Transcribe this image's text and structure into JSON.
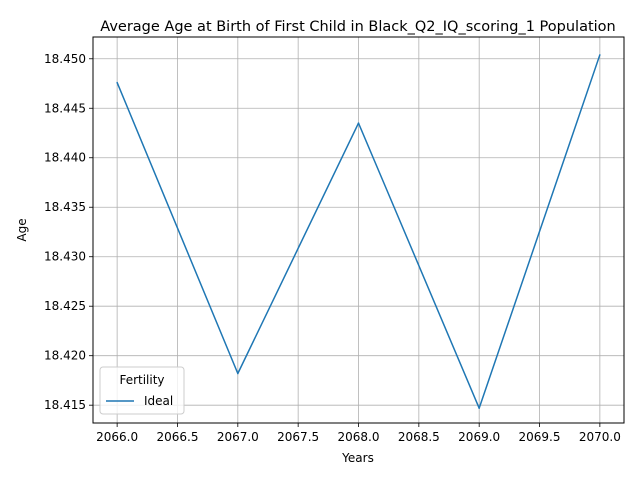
{
  "chart_data": {
    "type": "line",
    "title": "Average Age at Birth of First Child in Black_Q2_IQ_scoring_1 Population",
    "xlabel": "Years",
    "ylabel": "Age",
    "xlim": [
      2065.8,
      2070.2
    ],
    "ylim": [
      18.4132,
      18.4522
    ],
    "x_ticks": [
      "2066.0",
      "2066.5",
      "2067.0",
      "2067.5",
      "2068.0",
      "2068.5",
      "2069.0",
      "2069.5",
      "2070.0"
    ],
    "y_ticks": [
      "18.415",
      "18.420",
      "18.425",
      "18.430",
      "18.435",
      "18.440",
      "18.445",
      "18.450"
    ],
    "grid": true,
    "legend": {
      "title": "Fertility",
      "placement": "lower-left"
    },
    "series": [
      {
        "name": "Ideal",
        "color": "#1f77b4",
        "x": [
          2066,
          2067,
          2068,
          2069,
          2070
        ],
        "y": [
          18.4476,
          18.4182,
          18.4435,
          18.4147,
          18.4504
        ]
      }
    ]
  }
}
